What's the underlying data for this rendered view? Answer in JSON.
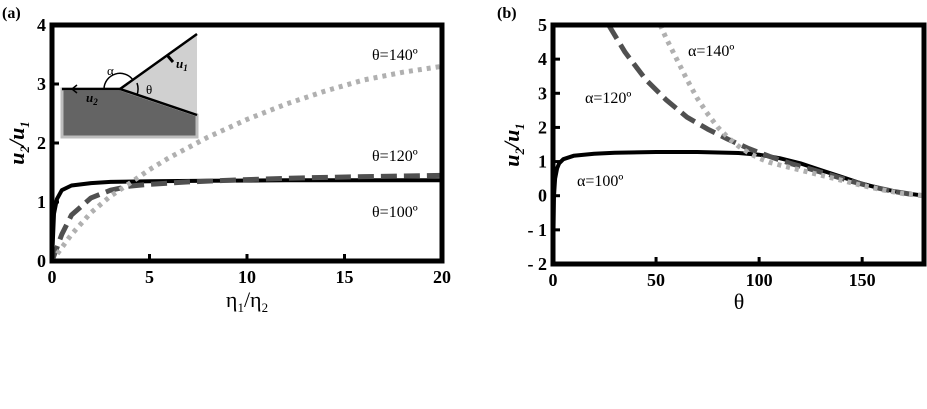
{
  "chart_data": [
    {
      "type": "line",
      "panel_label": "(a)",
      "xlabel": "η1/η2",
      "ylabel": "u2/u1",
      "xlim": [
        0,
        20
      ],
      "ylim": [
        0,
        4
      ],
      "xticks": [
        "0",
        "5",
        "10",
        "15",
        "20"
      ],
      "yticks": [
        "0",
        "1",
        "2",
        "3",
        "4"
      ],
      "grid": false,
      "series": [
        {
          "name": "θ=100º",
          "style": "solid",
          "color": "#000000",
          "x": [
            0,
            0.1,
            0.25,
            0.5,
            1,
            2,
            3,
            5,
            8,
            12,
            16,
            20
          ],
          "y": [
            0,
            0.8,
            1.05,
            1.2,
            1.28,
            1.32,
            1.34,
            1.35,
            1.36,
            1.37,
            1.37,
            1.37
          ]
        },
        {
          "name": "θ=120º",
          "style": "dashed",
          "color": "#505050",
          "x": [
            0,
            0.5,
            1,
            2,
            3,
            4,
            5,
            7,
            10,
            13,
            16,
            20
          ],
          "y": [
            0,
            0.45,
            0.78,
            1.07,
            1.2,
            1.27,
            1.3,
            1.34,
            1.38,
            1.41,
            1.43,
            1.45
          ]
        },
        {
          "name": "θ=140º",
          "style": "dotted",
          "color": "#b0b0b0",
          "x": [
            0,
            1,
            2,
            3,
            4,
            5,
            6,
            8,
            10,
            12,
            14,
            16,
            18,
            20
          ],
          "y": [
            0,
            0.45,
            0.82,
            1.1,
            1.32,
            1.55,
            1.75,
            2.1,
            2.4,
            2.66,
            2.88,
            3.07,
            3.2,
            3.3
          ]
        }
      ],
      "annotations": [
        "θ=140º",
        "θ=120º",
        "θ=100º"
      ],
      "inset_labels": {
        "alpha": "α",
        "theta": "θ",
        "u1": "u",
        "u1_sub": "1",
        "u2": "u",
        "u2_sub": "2"
      }
    },
    {
      "type": "line",
      "panel_label": "(b)",
      "xlabel": "θ",
      "ylabel": "u2/u1",
      "xlim": [
        0,
        180
      ],
      "ylim": [
        -2,
        5
      ],
      "xticks": [
        "0",
        "50",
        "100",
        "150"
      ],
      "yticks": [
        "- 2",
        "- 1",
        "0",
        "1",
        "2",
        "3",
        "4",
        "5"
      ],
      "grid": false,
      "series": [
        {
          "name": "α=100º",
          "style": "solid",
          "color": "#000000",
          "x": [
            0,
            0.5,
            1,
            2,
            3,
            5,
            10,
            20,
            30,
            50,
            70,
            90,
            100,
            110,
            120,
            130,
            140,
            150,
            160,
            170,
            180
          ],
          "y": [
            -2,
            0,
            0.5,
            0.8,
            0.95,
            1.07,
            1.17,
            1.23,
            1.26,
            1.28,
            1.28,
            1.25,
            1.2,
            1.1,
            0.95,
            0.75,
            0.55,
            0.35,
            0.2,
            0.08,
            0
          ]
        },
        {
          "name": "α=120º",
          "style": "dashed",
          "color": "#505050",
          "x": [
            27,
            35,
            45,
            55,
            65,
            75,
            85,
            95,
            105,
            115,
            125,
            135,
            145,
            155,
            165,
            175,
            180
          ],
          "y": [
            5,
            4.2,
            3.4,
            2.8,
            2.3,
            1.95,
            1.65,
            1.38,
            1.15,
            0.95,
            0.78,
            0.6,
            0.42,
            0.26,
            0.13,
            0.03,
            0
          ]
        },
        {
          "name": "α=140º",
          "style": "dotted",
          "color": "#b0b0b0",
          "x": [
            52,
            55,
            60,
            65,
            70,
            75,
            80,
            85,
            90,
            95,
            100,
            105,
            110,
            120,
            130,
            140,
            150,
            160,
            170,
            180
          ],
          "y": [
            5,
            4.6,
            4.0,
            3.4,
            2.85,
            2.4,
            2.0,
            1.7,
            1.45,
            1.25,
            1.1,
            0.98,
            0.9,
            0.75,
            0.6,
            0.45,
            0.3,
            0.17,
            0.06,
            0
          ]
        }
      ],
      "annotations": [
        "α=140º",
        "α=120º",
        "α=100º"
      ]
    }
  ]
}
